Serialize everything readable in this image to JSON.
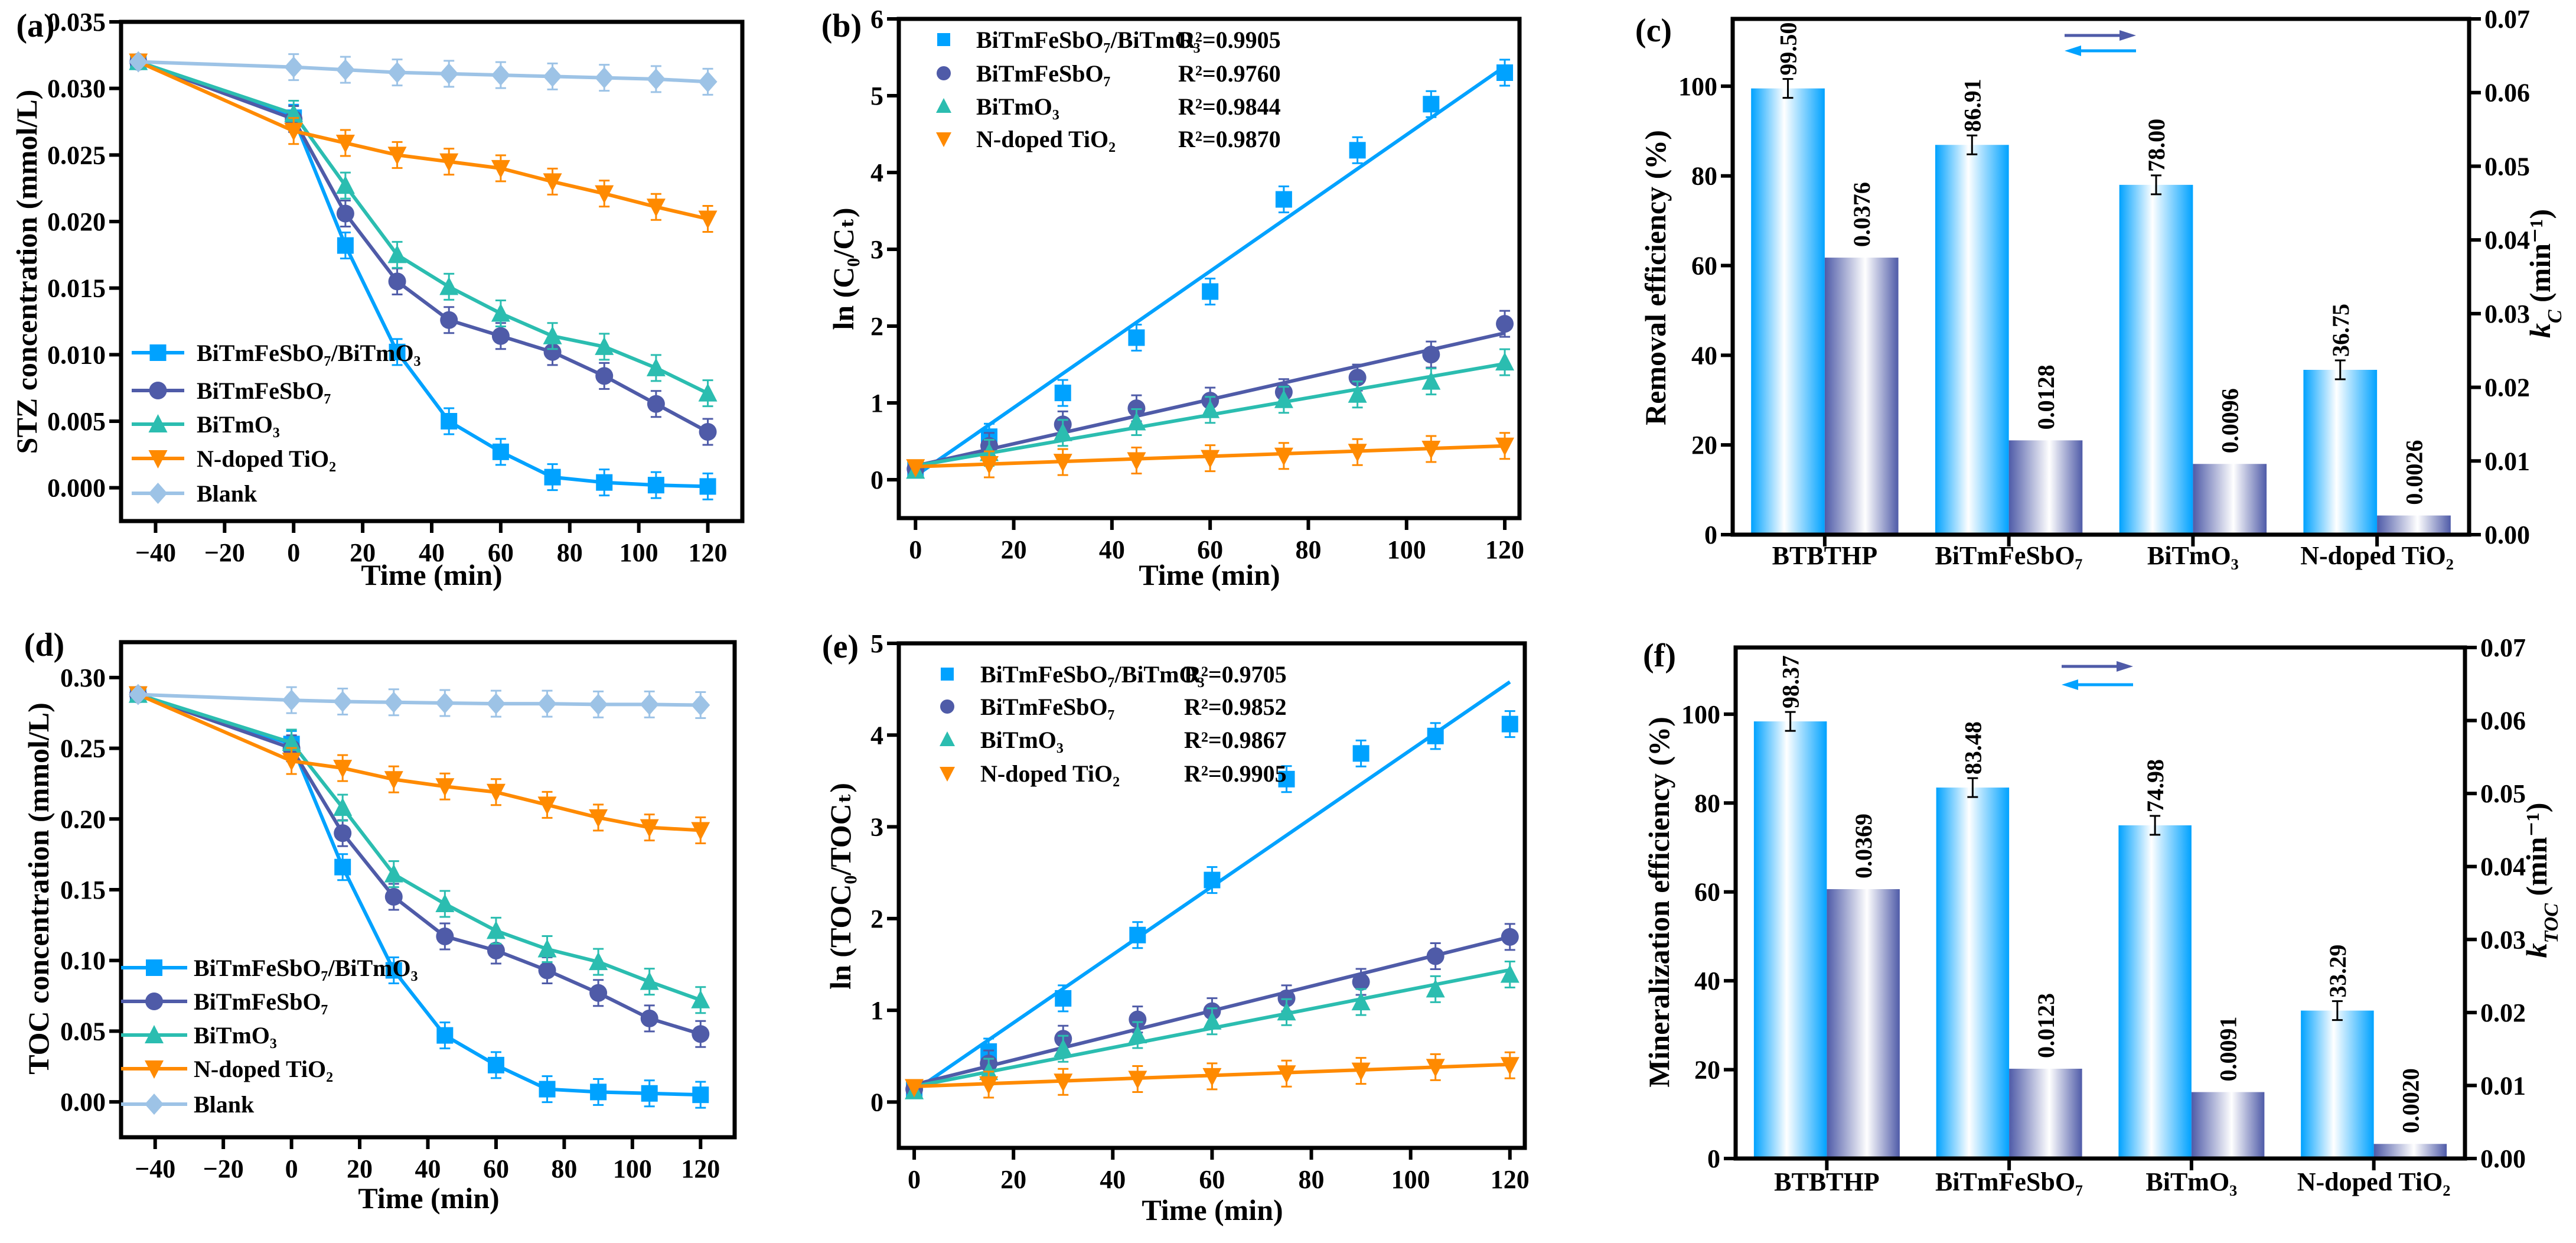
{
  "chart_data": [
    {
      "panel_label": "(a)",
      "type": "line",
      "xlabel": "Time (min)",
      "ylabel": "STZ concentration (mmol/L)",
      "xlim": [
        -50,
        130
      ],
      "ylim": [
        -0.0025,
        0.035
      ],
      "xticks": [
        "−40",
        "−20",
        "0",
        "20",
        "40",
        "60",
        "80",
        "100",
        "120"
      ],
      "yticks": [
        "0.000",
        "0.005",
        "0.010",
        "0.015",
        "0.020",
        "0.025",
        "0.030",
        "0.035"
      ],
      "grid": false,
      "legend": "bottom-left",
      "x": [
        -45,
        0,
        15,
        30,
        45,
        60,
        75,
        90,
        105,
        120
      ],
      "series": [
        {
          "name": "BiTmFeSbO₇/BiTmO₃",
          "color": "#00A2FF",
          "marker": "square",
          "values": [
            0.032,
            0.0278,
            0.0182,
            0.0102,
            0.005,
            0.0027,
            0.0008,
            0.0004,
            0.0002,
            0.0001
          ]
        },
        {
          "name": "BiTmFeSbO₇",
          "color": "#4F5BA8",
          "marker": "circle",
          "values": [
            0.032,
            0.0277,
            0.0206,
            0.0155,
            0.0126,
            0.0114,
            0.0102,
            0.0084,
            0.0063,
            0.0042
          ]
        },
        {
          "name": "BiTmO₃",
          "color": "#2BBDB0",
          "marker": "triangle-up",
          "values": [
            0.032,
            0.0281,
            0.0227,
            0.0175,
            0.0151,
            0.0131,
            0.0114,
            0.0106,
            0.009,
            0.0071
          ]
        },
        {
          "name": "N-doped TiO₂",
          "color": "#FF8A00",
          "marker": "triangle-down",
          "values": [
            0.032,
            0.0268,
            0.0259,
            0.025,
            0.0245,
            0.024,
            0.023,
            0.0221,
            0.0211,
            0.0202
          ]
        },
        {
          "name": "Blank",
          "color": "#9DC3E6",
          "marker": "diamond",
          "values": [
            0.032,
            0.0316,
            0.0314,
            0.0312,
            0.0311,
            0.031,
            0.0309,
            0.0308,
            0.0307,
            0.0305
          ]
        }
      ]
    },
    {
      "panel_label": "(b)",
      "type": "scatter",
      "xlabel": "Time (min)",
      "ylabel": "ln (C₀/Cₜ)",
      "xlim": [
        -3.4,
        123
      ],
      "ylim": [
        -0.5,
        6
      ],
      "xticks": [
        "0",
        "20",
        "40",
        "60",
        "80",
        "100",
        "120"
      ],
      "yticks": [
        "0",
        "1",
        "2",
        "3",
        "4",
        "5",
        "6"
      ],
      "grid": false,
      "legend": "top-left",
      "x": [
        0,
        15,
        30,
        45,
        60,
        75,
        90,
        105,
        120
      ],
      "series": [
        {
          "name": "BiTmFeSbO₇/BiTmO₃",
          "r2": "R²=0.9905",
          "color": "#00A2FF",
          "marker": "square",
          "values": [
            0.13,
            0.56,
            1.13,
            1.85,
            2.45,
            3.65,
            4.29,
            4.89,
            5.3
          ],
          "fit": [
            0.05,
            5.38
          ]
        },
        {
          "name": "BiTmFeSbO₇",
          "r2": "R²=0.9760",
          "color": "#4F5BA8",
          "marker": "circle",
          "values": [
            0.14,
            0.44,
            0.72,
            0.93,
            1.03,
            1.14,
            1.33,
            1.63,
            2.03
          ],
          "fit": [
            0.18,
            1.91
          ]
        },
        {
          "name": "BiTmO₃",
          "r2": "R²=0.9844",
          "color": "#2BBDB0",
          "marker": "triangle-up",
          "values": [
            0.12,
            0.35,
            0.61,
            0.75,
            0.91,
            1.04,
            1.11,
            1.28,
            1.53
          ],
          "fit": [
            0.18,
            1.51
          ]
        },
        {
          "name": "N-doped TiO₂",
          "r2": "R²=0.9870",
          "color": "#FF8A00",
          "marker": "triangle-down",
          "values": [
            0.16,
            0.2,
            0.23,
            0.25,
            0.28,
            0.31,
            0.36,
            0.4,
            0.44
          ],
          "fit": [
            0.17,
            0.44
          ]
        }
      ]
    },
    {
      "panel_label": "(c)",
      "type": "bar",
      "categories": [
        "BTBTHP",
        "BiTmFeSbO₇",
        "BiTmO₃",
        "N-doped TiO₂"
      ],
      "ylabel": "Removal efficiency (%)",
      "ylabel_right_symbol": "k",
      "ylabel_right_subscript": "C",
      "ylabel_right_unit": " (min⁻¹)",
      "ylim": [
        0,
        115
      ],
      "ylim_right": [
        0,
        0.07
      ],
      "yticks": [
        "0",
        "20",
        "40",
        "60",
        "80",
        "100"
      ],
      "yticks_right": [
        "0.00",
        "0.01",
        "0.02",
        "0.03",
        "0.04",
        "0.05",
        "0.06",
        "0.07"
      ],
      "grid": false,
      "series": [
        {
          "axis": "left",
          "color": "#00A2FF",
          "values": [
            99.5,
            86.91,
            78.0,
            36.75
          ],
          "value_labels": [
            "99.50",
            "86.91",
            "78.00",
            "36.75"
          ]
        },
        {
          "axis": "right",
          "color": "#4F5BA8",
          "values": [
            0.0376,
            0.0128,
            0.0096,
            0.0026
          ],
          "value_labels": [
            "0.0376",
            "0.0128",
            "0.0096",
            "0.0026"
          ]
        }
      ]
    },
    {
      "panel_label": "(d)",
      "type": "line",
      "xlabel": "Time (min)",
      "ylabel": "TOC concentration (mmol/L)",
      "xlim": [
        -50,
        130
      ],
      "ylim": [
        -0.025,
        0.325
      ],
      "xticks": [
        "−40",
        "−20",
        "0",
        "20",
        "40",
        "60",
        "80",
        "100",
        "120"
      ],
      "yticks": [
        "0.00",
        "0.05",
        "0.10",
        "0.15",
        "0.20",
        "0.25",
        "0.30"
      ],
      "grid": false,
      "legend": "bottom-left",
      "x": [
        -45,
        0,
        15,
        30,
        45,
        60,
        75,
        90,
        105,
        120
      ],
      "series": [
        {
          "name": "BiTmFeSbO₇/BiTmO₃",
          "color": "#00A2FF",
          "marker": "square",
          "values": [
            0.288,
            0.253,
            0.166,
            0.093,
            0.047,
            0.026,
            0.009,
            0.007,
            0.006,
            0.005
          ]
        },
        {
          "name": "BiTmFeSbO₇",
          "color": "#4F5BA8",
          "marker": "circle",
          "values": [
            0.288,
            0.25,
            0.19,
            0.145,
            0.117,
            0.107,
            0.093,
            0.077,
            0.059,
            0.048
          ]
        },
        {
          "name": "BiTmO₃",
          "color": "#2BBDB0",
          "marker": "triangle-up",
          "values": [
            0.288,
            0.254,
            0.208,
            0.161,
            0.14,
            0.121,
            0.108,
            0.099,
            0.085,
            0.072
          ]
        },
        {
          "name": "N-doped TiO₂",
          "color": "#FF8A00",
          "marker": "triangle-down",
          "values": [
            0.288,
            0.241,
            0.236,
            0.228,
            0.223,
            0.219,
            0.21,
            0.201,
            0.194,
            0.192
          ]
        },
        {
          "name": "Blank",
          "color": "#9DC3E6",
          "marker": "diamond",
          "values": [
            0.288,
            0.284,
            0.283,
            0.2825,
            0.282,
            0.2815,
            0.2815,
            0.281,
            0.281,
            0.2805
          ]
        }
      ]
    },
    {
      "panel_label": "(e)",
      "type": "scatter",
      "xlabel": "Time (min)",
      "ylabel": "ln (TOC₀/TOCₜ)",
      "xlim": [
        -3.1,
        123
      ],
      "ylim": [
        -0.5,
        5
      ],
      "xticks": [
        "0",
        "20",
        "40",
        "60",
        "80",
        "100",
        "120"
      ],
      "yticks": [
        "0",
        "1",
        "2",
        "3",
        "4",
        "5"
      ],
      "grid": false,
      "legend": "top-left",
      "x": [
        0,
        15,
        30,
        45,
        60,
        75,
        90,
        105,
        120
      ],
      "series": [
        {
          "name": "BiTmFeSbO₇/BiTmO₃",
          "r2": "R²=0.9705",
          "color": "#00A2FF",
          "marker": "square",
          "values": [
            0.13,
            0.55,
            1.13,
            1.82,
            2.42,
            3.52,
            3.8,
            3.99,
            4.12
          ],
          "fit": [
            0.12,
            4.58
          ]
        },
        {
          "name": "BiTmFeSbO₇",
          "r2": "R²=0.9852",
          "color": "#4F5BA8",
          "marker": "circle",
          "values": [
            0.14,
            0.42,
            0.69,
            0.9,
            0.99,
            1.13,
            1.31,
            1.59,
            1.8
          ],
          "fit": [
            0.19,
            1.8
          ]
        },
        {
          "name": "BiTmO₃",
          "r2": "R²=0.9867",
          "color": "#2BBDB0",
          "marker": "triangle-up",
          "values": [
            0.12,
            0.33,
            0.58,
            0.73,
            0.88,
            0.98,
            1.09,
            1.23,
            1.39
          ],
          "fit": [
            0.17,
            1.44
          ]
        },
        {
          "name": "N-doped TiO₂",
          "r2": "R²=0.9905",
          "color": "#FF8A00",
          "marker": "triangle-down",
          "values": [
            0.16,
            0.19,
            0.22,
            0.25,
            0.28,
            0.31,
            0.34,
            0.38,
            0.4
          ],
          "fit": [
            0.17,
            0.41
          ]
        }
      ]
    },
    {
      "panel_label": "(f)",
      "type": "bar",
      "categories": [
        "BTBTHP",
        "BiTmFeSbO₇",
        "BiTmO₃",
        "N-doped TiO₂"
      ],
      "ylabel": "Mineralization efficiency (%)",
      "ylabel_right_symbol": "k",
      "ylabel_right_subscript": "TOC",
      "ylabel_right_unit": " (min⁻¹)",
      "ylim": [
        0,
        115
      ],
      "ylim_right": [
        0,
        0.07
      ],
      "yticks": [
        "0",
        "20",
        "40",
        "60",
        "80",
        "100"
      ],
      "yticks_right": [
        "0.00",
        "0.01",
        "0.02",
        "0.03",
        "0.04",
        "0.05",
        "0.06",
        "0.07"
      ],
      "grid": false,
      "series": [
        {
          "axis": "left",
          "color": "#00A2FF",
          "values": [
            98.37,
            83.48,
            74.98,
            33.29
          ],
          "value_labels": [
            "98.37",
            "83.48",
            "74.98",
            "33.29"
          ]
        },
        {
          "axis": "right",
          "color": "#4F5BA8",
          "values": [
            0.0369,
            0.0123,
            0.0091,
            0.002
          ],
          "value_labels": [
            "0.0369",
            "0.0123",
            "0.0091",
            "0.0020"
          ]
        }
      ]
    }
  ]
}
